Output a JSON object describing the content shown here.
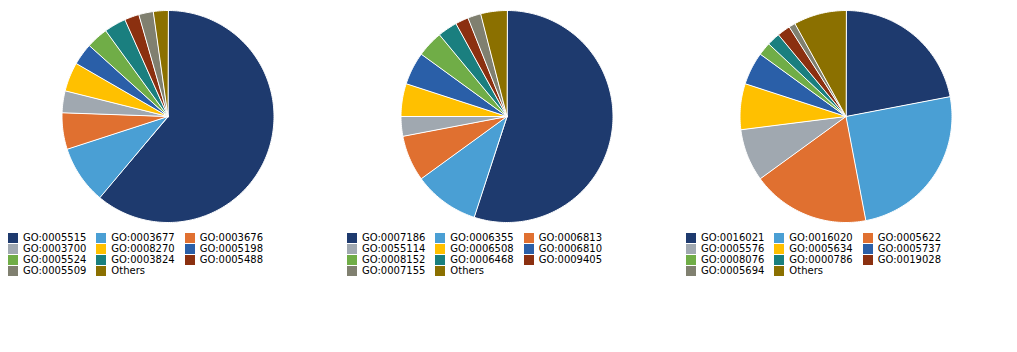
{
  "chart_data": [
    {
      "type": "pie",
      "categories": [
        "GO:0005515",
        "GO:0003677",
        "GO:0003676",
        "GO:0003700",
        "GO:0008270",
        "GO:0005198",
        "GO:0005524",
        "GO:0003824",
        "GO:0005488",
        "GO:0005509",
        "Others"
      ],
      "values": [
        55,
        8,
        5,
        3,
        4,
        3,
        3,
        3,
        2,
        2,
        2
      ],
      "colors": [
        "#1e3a6e",
        "#4a9fd4",
        "#e07030",
        "#a0a8b0",
        "#ffc000",
        "#2a5fa8",
        "#70ad47",
        "#1a7f7f",
        "#8b3010",
        "#808070",
        "#8b7000"
      ],
      "legend": "bottom"
    },
    {
      "type": "pie",
      "categories": [
        "GO:0007186",
        "GO:0006355",
        "GO:0006813",
        "GO:0055114",
        "GO:0006508",
        "GO:0006810",
        "GO:0008152",
        "GO:0006468",
        "GO:0009405",
        "GO:0007155",
        "Others"
      ],
      "values": [
        55,
        10,
        7,
        3,
        5,
        5,
        4,
        3,
        2,
        2,
        4
      ],
      "colors": [
        "#1e3a6e",
        "#4a9fd4",
        "#e07030",
        "#a0a8b0",
        "#ffc000",
        "#2a5fa8",
        "#70ad47",
        "#1a7f7f",
        "#8b3010",
        "#808070",
        "#8b7000"
      ],
      "legend": "bottom"
    },
    {
      "type": "pie",
      "categories": [
        "GO:0016021",
        "GO:0016020",
        "GO:0005622",
        "GO:0005576",
        "GO:0005634",
        "GO:0005737",
        "GO:0008076",
        "GO:0000786",
        "GO:0019028",
        "GO:0005694",
        "Others"
      ],
      "values": [
        22,
        25,
        18,
        8,
        7,
        5,
        2,
        2,
        2,
        1,
        8
      ],
      "colors": [
        "#1e3a6e",
        "#4a9fd4",
        "#e07030",
        "#a0a8b0",
        "#ffc000",
        "#2a5fa8",
        "#70ad47",
        "#1a7f7f",
        "#8b3010",
        "#808070",
        "#8b7000"
      ],
      "legend": "bottom"
    }
  ]
}
